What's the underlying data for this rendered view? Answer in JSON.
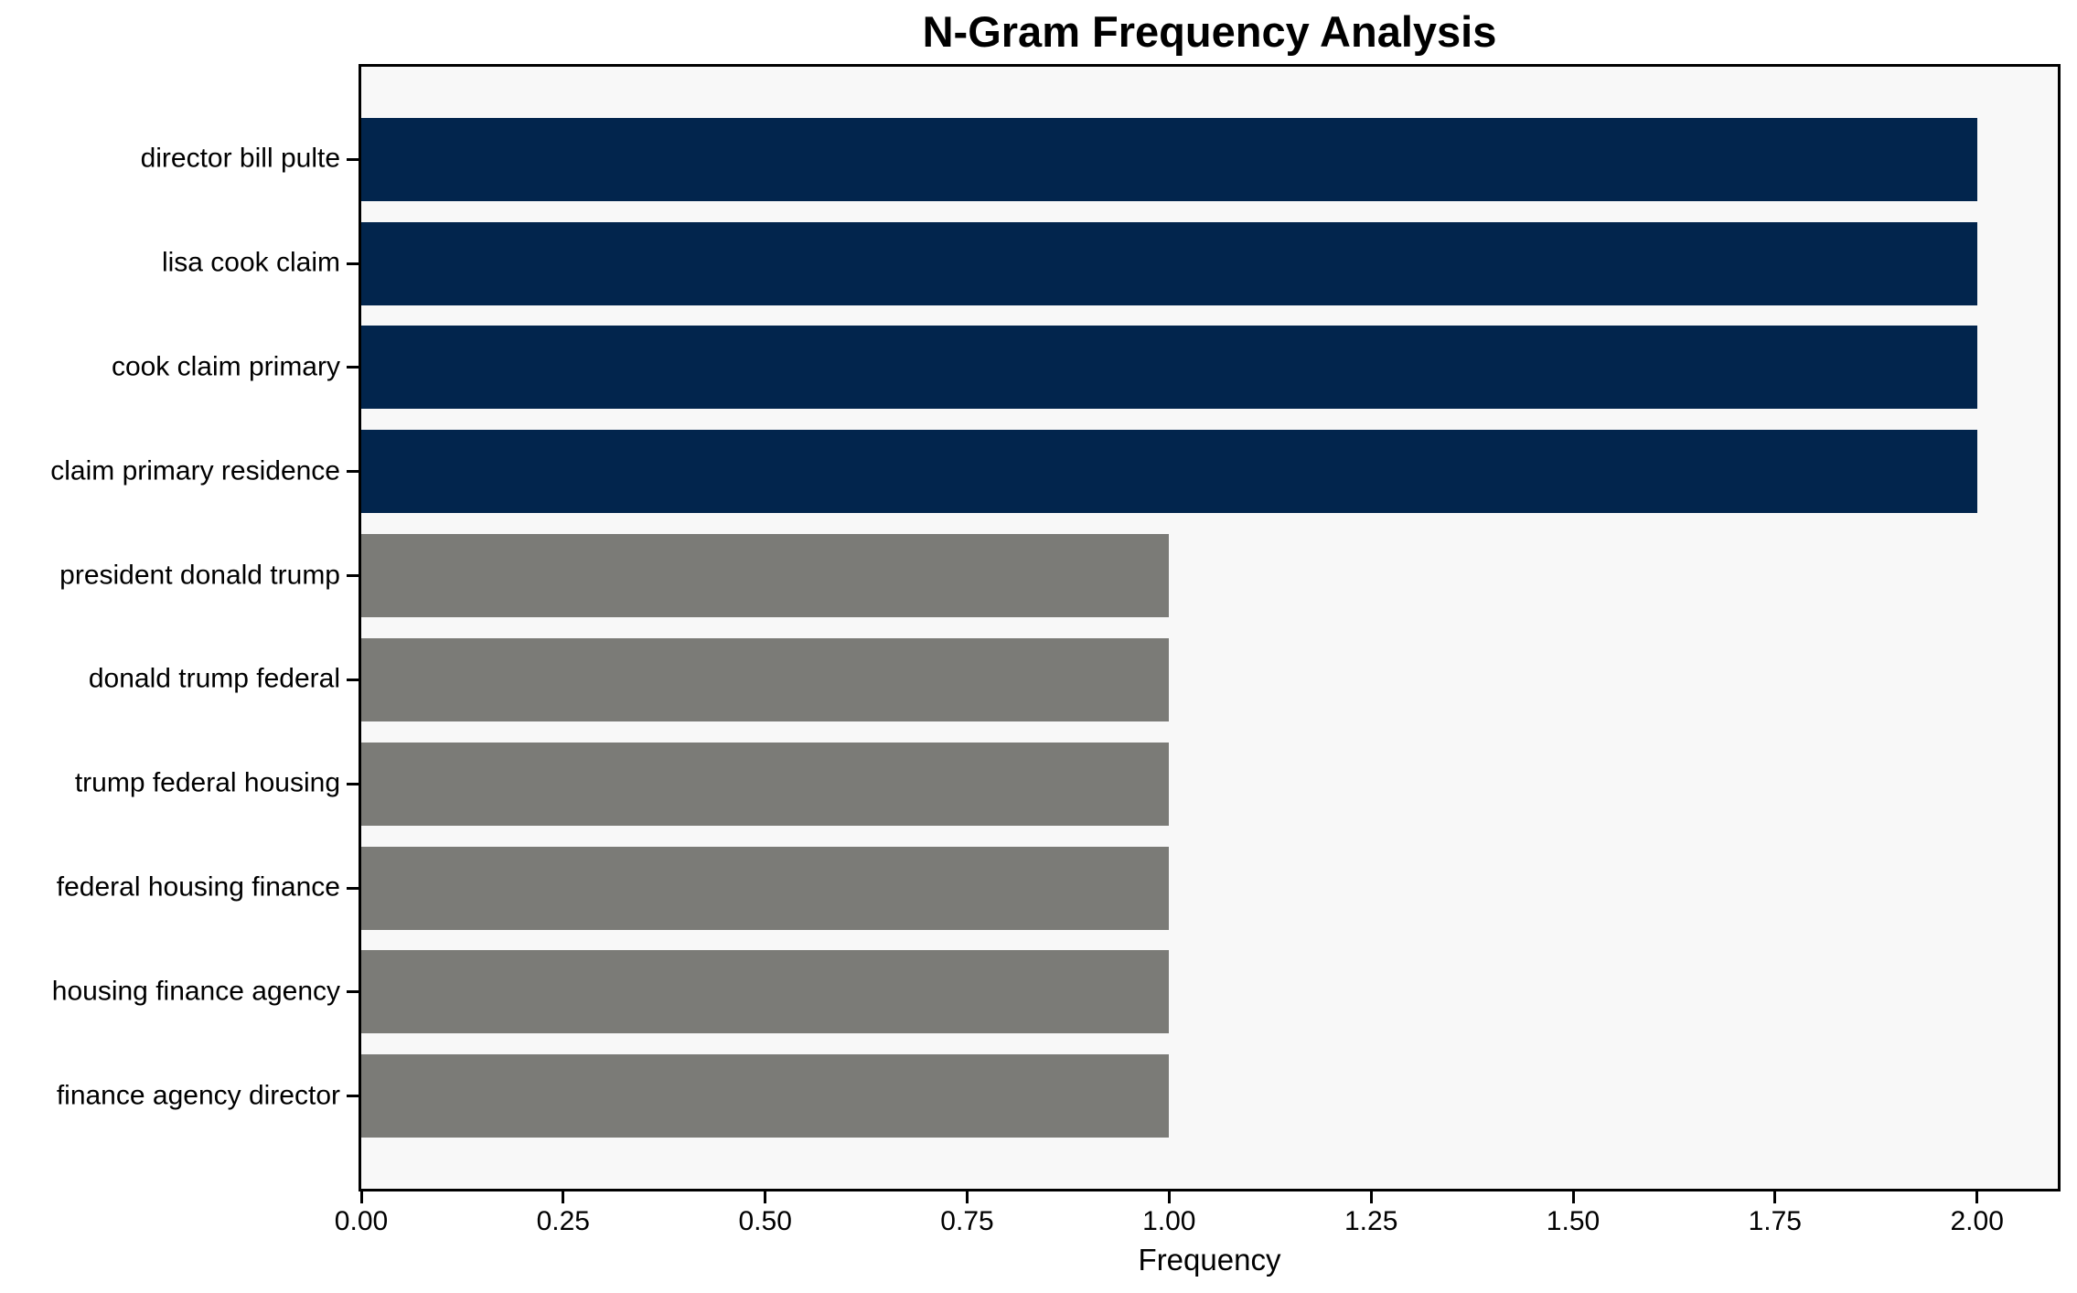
{
  "chart_data": {
    "type": "bar",
    "orientation": "horizontal",
    "title": "N-Gram Frequency Analysis",
    "xlabel": "Frequency",
    "ylabel": "",
    "categories": [
      "director bill pulte",
      "lisa cook claim",
      "cook claim primary",
      "claim primary residence",
      "president donald trump",
      "donald trump federal",
      "trump federal housing",
      "federal housing finance",
      "housing finance agency",
      "finance agency director"
    ],
    "values": [
      2,
      2,
      2,
      2,
      1,
      1,
      1,
      1,
      1,
      1
    ],
    "bar_colors": [
      "#02254D",
      "#02254D",
      "#02254D",
      "#02254D",
      "#7B7B77",
      "#7B7B77",
      "#7B7B77",
      "#7B7B77",
      "#7B7B77",
      "#7B7B77"
    ],
    "xlim": [
      0,
      2.1
    ],
    "xticks": {
      "values": [
        0,
        0.25,
        0.5,
        0.75,
        1.0,
        1.25,
        1.5,
        1.75,
        2.0
      ],
      "labels": [
        "0.00",
        "0.25",
        "0.50",
        "0.75",
        "1.00",
        "1.25",
        "1.50",
        "1.75",
        "2.00"
      ]
    },
    "bar_height_fraction": 0.8,
    "grid": false,
    "legend": false,
    "colors": {
      "high_frequency_bar": "#02254D",
      "low_frequency_bar": "#7B7B77",
      "plot_background": "#F8F8F8",
      "figure_background": "#FFFFFF",
      "axis": "#000000",
      "text": "#000000"
    }
  }
}
